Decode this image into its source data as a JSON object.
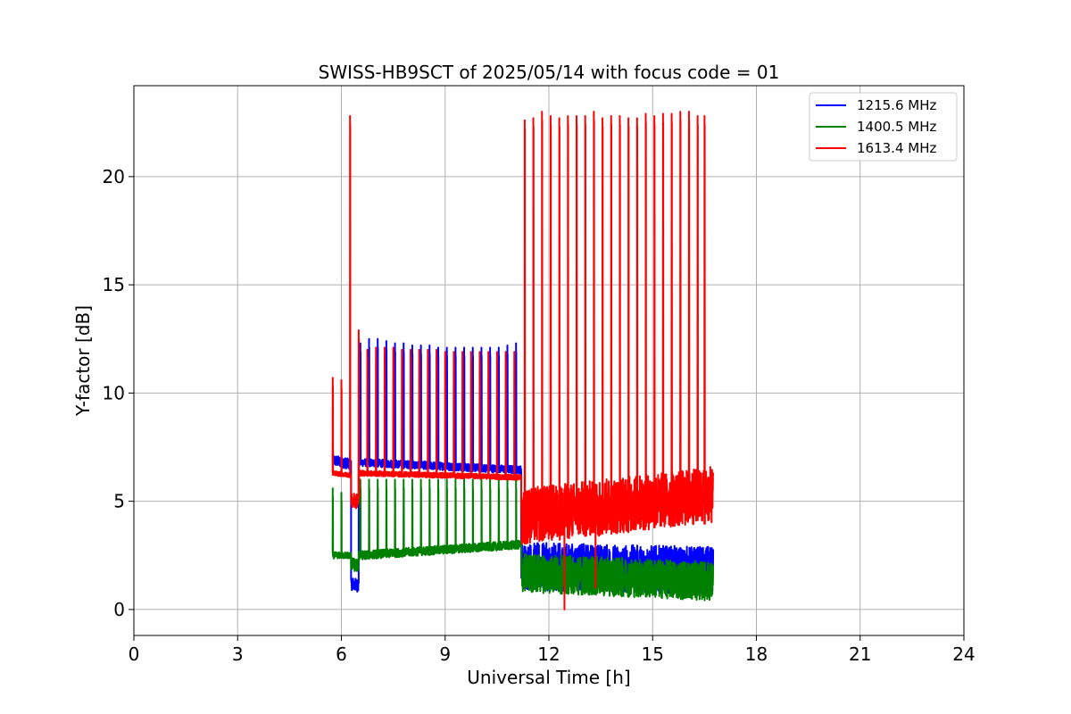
{
  "chart_data": {
    "type": "line",
    "title": "SWISS-HB9SCT of 2025/05/14 with focus code = 01",
    "xlabel": "Universal Time [h]",
    "ylabel": "Y-factor [dB]",
    "xlim": [
      0,
      24
    ],
    "ylim": [
      -1.2,
      24.2
    ],
    "xticks": [
      "0",
      "3",
      "6",
      "9",
      "12",
      "15",
      "18",
      "21",
      "24"
    ],
    "yticks": [
      "0",
      "5",
      "10",
      "15",
      "20"
    ],
    "grid": true,
    "legend_position": "top-right",
    "series": [
      {
        "name": "1215.6 MHz",
        "color": "#0000ff",
        "segments": [
          {
            "x0": 5.75,
            "x1": 6.28,
            "base_start": 6.9,
            "base_end": 6.7,
            "noise": 0.25
          },
          {
            "x0": 6.28,
            "x1": 6.5,
            "base_start": 1.2,
            "base_end": 1.1,
            "noise": 0.3
          },
          {
            "x0": 6.5,
            "x1": 11.2,
            "base_start": 6.8,
            "base_end": 6.45,
            "noise": 0.18
          },
          {
            "x0": 11.2,
            "x1": 16.75,
            "base_start": 2.0,
            "base_end": 1.8,
            "noise": 1.1
          }
        ],
        "spike_times": [
          5.75,
          6.0,
          6.25,
          6.55,
          6.8,
          7.05,
          7.3,
          7.55,
          7.8,
          8.05,
          8.3,
          8.55,
          8.8,
          9.05,
          9.3,
          9.55,
          9.8,
          10.05,
          10.3,
          10.55,
          10.8,
          11.05
        ],
        "spike_values": [
          7.2,
          7.4,
          7.3,
          12.3,
          12.5,
          12.5,
          12.4,
          12.3,
          12.3,
          12.2,
          12.2,
          12.2,
          12.1,
          12.1,
          12.1,
          12.1,
          12.1,
          12.1,
          12.1,
          12.1,
          12.2,
          12.3
        ]
      },
      {
        "name": "1400.5 MHz",
        "color": "#008000",
        "segments": [
          {
            "x0": 5.75,
            "x1": 6.28,
            "base_start": 2.5,
            "base_end": 2.5,
            "noise": 0.15
          },
          {
            "x0": 6.28,
            "x1": 6.5,
            "base_start": 2.1,
            "base_end": 2.0,
            "noise": 0.3
          },
          {
            "x0": 6.5,
            "x1": 11.2,
            "base_start": 2.5,
            "base_end": 3.0,
            "noise": 0.2
          },
          {
            "x0": 11.2,
            "x1": 16.75,
            "base_start": 1.7,
            "base_end": 1.3,
            "noise": 0.9
          }
        ],
        "spike_times": [
          5.75,
          6.0,
          6.55,
          6.8,
          7.05,
          7.3,
          7.55,
          7.8,
          8.05,
          8.3,
          8.55,
          8.8,
          9.05,
          9.3,
          9.55,
          9.8,
          10.05,
          10.3,
          10.55,
          10.8,
          11.05
        ],
        "spike_values": [
          5.6,
          5.4,
          6.0,
          6.0,
          6.0,
          6.0,
          6.0,
          6.0,
          6.0,
          6.0,
          6.0,
          6.0,
          6.0,
          6.0,
          6.0,
          6.0,
          6.0,
          6.0,
          6.0,
          6.0,
          6.0
        ]
      },
      {
        "name": "1613.4 MHz",
        "color": "#ff0000",
        "segments": [
          {
            "x0": 5.75,
            "x1": 6.28,
            "base_start": 6.3,
            "base_end": 6.2,
            "noise": 0.1
          },
          {
            "x0": 6.28,
            "x1": 6.5,
            "base_start": 5.0,
            "base_end": 5.0,
            "noise": 0.35
          },
          {
            "x0": 6.5,
            "x1": 11.2,
            "base_start": 6.3,
            "base_end": 6.1,
            "noise": 0.12
          },
          {
            "x0": 11.2,
            "x1": 16.75,
            "base_start": 4.3,
            "base_end": 5.3,
            "noise": 1.3
          }
        ],
        "spike_times": [
          5.75,
          6.0,
          6.25,
          6.5,
          6.75,
          7.0,
          7.25,
          7.5,
          7.75,
          8.0,
          8.25,
          8.5,
          8.75,
          9.0,
          9.25,
          9.5,
          9.75,
          10.0,
          10.25,
          10.5,
          10.75,
          11.0,
          11.3,
          11.55,
          11.8,
          12.05,
          12.3,
          12.55,
          12.8,
          13.05,
          13.3,
          13.55,
          13.8,
          14.05,
          14.3,
          14.55,
          14.8,
          15.05,
          15.3,
          15.55,
          15.8,
          16.05,
          16.3,
          16.5
        ],
        "spike_values": [
          10.7,
          10.6,
          22.8,
          12.9,
          12.0,
          12.1,
          12.1,
          12.1,
          12.0,
          12.0,
          12.0,
          12.0,
          12.0,
          11.9,
          11.9,
          11.9,
          11.9,
          11.9,
          11.9,
          11.9,
          11.9,
          11.9,
          22.6,
          22.7,
          23.0,
          22.8,
          22.7,
          22.8,
          22.8,
          22.8,
          23.0,
          22.7,
          22.8,
          22.8,
          22.7,
          22.7,
          22.9,
          22.8,
          22.9,
          22.9,
          23.0,
          23.0,
          22.8,
          22.8
        ],
        "dips": [
          {
            "x": 12.45,
            "y": 0.0
          },
          {
            "x": 13.35,
            "y": 1.0
          }
        ]
      }
    ]
  }
}
